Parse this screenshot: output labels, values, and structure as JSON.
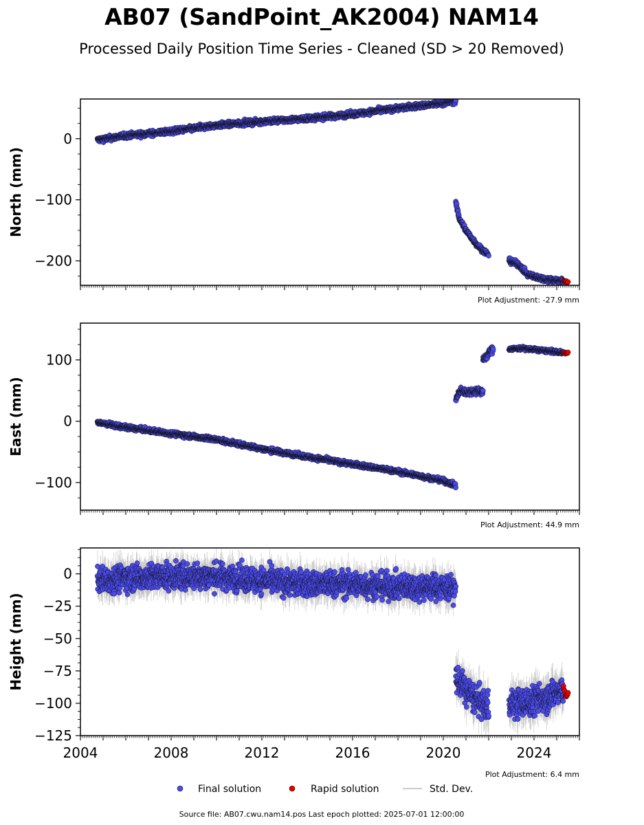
{
  "title": "AB07 (SandPoint_AK2004) NAM14",
  "subtitle": "Processed Daily Position Time Series - Cleaned (SD > 20 Removed)",
  "footer": "Source file: AB07.cwu.nam14.pos  Last epoch plotted: 2025-07-01 12:00:00",
  "legend": {
    "final": "Final solution",
    "rapid": "Rapid solution",
    "std": "Std. Dev."
  },
  "colors": {
    "final": "#4a4af0",
    "rapid": "#e60000",
    "std": "#bbbbbb",
    "edge": "#111111"
  },
  "chart_data": [
    {
      "type": "scatter",
      "ylabel": "North (mm)",
      "adjustment": "Plot Adjustment: -27.9 mm",
      "xlim": [
        2004.0,
        2026.0
      ],
      "ylim": [
        -240,
        65
      ],
      "yticks": [
        -200,
        -100,
        0
      ],
      "series": [
        {
          "name": "Final solution",
          "segments": [
            {
              "x": [
                2004.75,
                2006.0,
                2008.0,
                2010.0,
                2012.0,
                2014.0,
                2016.0,
                2018.0,
                2020.0,
                2020.55
              ],
              "y": [
                -2,
                5,
                12,
                22,
                28,
                33,
                40,
                50,
                58,
                62
              ],
              "noise": 3
            },
            {
              "x": [
                2020.55,
                2020.7,
                2021.0,
                2021.3,
                2021.6,
                2022.0
              ],
              "y": [
                -105,
                -130,
                -150,
                -165,
                -178,
                -190
              ],
              "noise": 3
            },
            {
              "x": [
                2022.9,
                2023.3,
                2023.7,
                2024.0,
                2024.5,
                2025.0,
                2025.3
              ],
              "y": [
                -200,
                -205,
                -222,
                -226,
                -230,
                -232,
                -233
              ],
              "noise": 3
            }
          ]
        },
        {
          "name": "Rapid solution",
          "segments": [
            {
              "x": [
                2025.3,
                2025.5
              ],
              "y": [
                -233,
                -235
              ],
              "noise": 1
            }
          ]
        }
      ]
    },
    {
      "type": "scatter",
      "ylabel": "East (mm)",
      "adjustment": "Plot Adjustment: 44.9 mm",
      "xlim": [
        2004.0,
        2026.0
      ],
      "ylim": [
        -145,
        160
      ],
      "yticks": [
        -100,
        0,
        100
      ],
      "series": [
        {
          "name": "Final solution",
          "segments": [
            {
              "x": [
                2004.75,
                2006.0,
                2008.0,
                2010.0,
                2012.0,
                2014.0,
                2016.0,
                2018.0,
                2020.0,
                2020.55
              ],
              "y": [
                -2,
                -10,
                -20,
                -30,
                -45,
                -58,
                -70,
                -82,
                -97,
                -105
              ],
              "noise": 2.5
            },
            {
              "x": [
                2020.55,
                2020.75,
                2021.0,
                2021.5,
                2021.75
              ],
              "y": [
                35,
                50,
                47,
                50,
                48
              ],
              "noise": 4
            },
            {
              "x": [
                2021.75,
                2022.0,
                2022.2
              ],
              "y": [
                100,
                110,
                118
              ],
              "noise": 4
            },
            {
              "x": [
                2022.9,
                2023.5,
                2024.0,
                2024.5,
                2025.0,
                2025.3
              ],
              "y": [
                118,
                119,
                117,
                115,
                113,
                112
              ],
              "noise": 2
            }
          ]
        },
        {
          "name": "Rapid solution",
          "segments": [
            {
              "x": [
                2025.3,
                2025.5
              ],
              "y": [
                112,
                111
              ],
              "noise": 1
            }
          ]
        }
      ]
    },
    {
      "type": "scatter",
      "ylabel": "Height (mm)",
      "adjustment": "Plot Adjustment: 6.4 mm",
      "xlabel": "",
      "xlim": [
        2004.0,
        2026.0
      ],
      "ylim": [
        -125,
        20
      ],
      "yticks": [
        -125,
        -100,
        -75,
        -50,
        -25,
        0
      ],
      "xticks": [
        2004,
        2008,
        2012,
        2016,
        2020,
        2024
      ],
      "series": [
        {
          "name": "Final solution",
          "segments": [
            {
              "x": [
                2004.75,
                2006.0,
                2008.0,
                2010.0,
                2012.0,
                2014.0,
                2016.0,
                2018.0,
                2020.0,
                2020.55
              ],
              "y": [
                -5,
                -3,
                -2,
                -2,
                -5,
                -8,
                -8,
                -10,
                -10,
                -12
              ],
              "noise": 7
            },
            {
              "x": [
                2020.55,
                2021.0,
                2021.5,
                2022.0
              ],
              "y": [
                -80,
                -90,
                -98,
                -103
              ],
              "noise": 8
            },
            {
              "x": [
                2022.9,
                2023.5,
                2024.0,
                2024.5,
                2025.0,
                2025.3
              ],
              "y": [
                -100,
                -100,
                -98,
                -95,
                -92,
                -90
              ],
              "noise": 8
            }
          ]
        },
        {
          "name": "Rapid solution",
          "segments": [
            {
              "x": [
                2025.3,
                2025.5
              ],
              "y": [
                -88,
                -96
              ],
              "noise": 3
            }
          ]
        }
      ]
    }
  ]
}
